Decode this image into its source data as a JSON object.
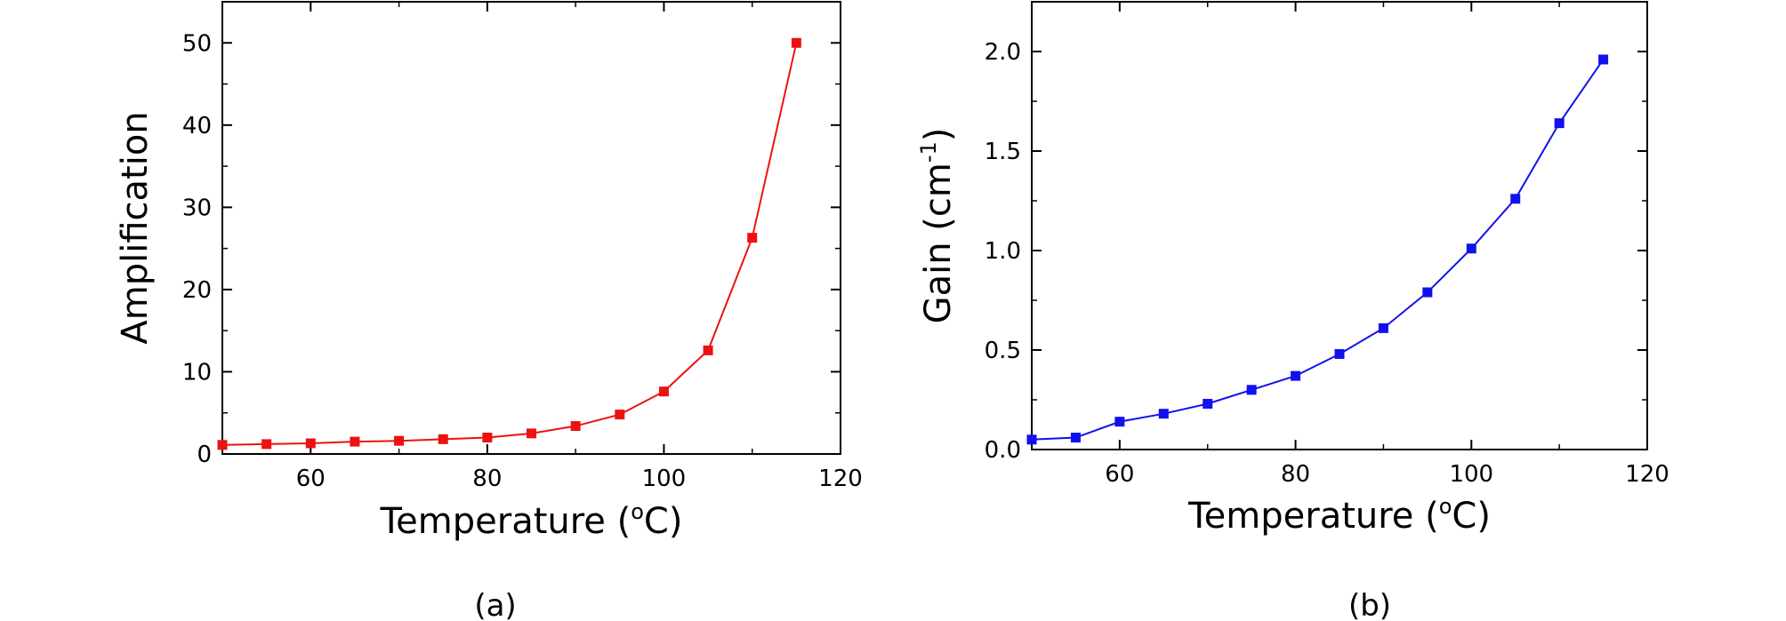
{
  "chart_data": [
    {
      "type": "line",
      "panel_label": "(a)",
      "xlabel": {
        "main": "Temperature (",
        "sup": "o",
        "tail": "C)"
      },
      "ylabel": {
        "main": "Amplification",
        "sup": "",
        "tail": ""
      },
      "xlim": [
        50,
        120
      ],
      "ylim": [
        0,
        55
      ],
      "xticks": [
        60,
        80,
        100,
        120
      ],
      "yticks": [
        0,
        10,
        20,
        30,
        40,
        50
      ],
      "tick_labels_x": [
        "60",
        "80",
        "100",
        "120"
      ],
      "tick_labels_y": [
        "0",
        "10",
        "20",
        "30",
        "40",
        "50"
      ],
      "minor_x_step": 10,
      "minor_y_step": 5,
      "grid": false,
      "color": "#ee1111",
      "marker": "square",
      "series": [
        {
          "x": [
            50,
            55,
            60,
            65,
            70,
            75,
            80,
            85,
            90,
            95,
            100,
            105,
            110,
            115
          ],
          "values": [
            1.1,
            1.2,
            1.3,
            1.5,
            1.6,
            1.8,
            2.0,
            2.5,
            3.4,
            4.8,
            7.6,
            12.6,
            26.3,
            50.0
          ]
        }
      ]
    },
    {
      "type": "line",
      "panel_label": "(b)",
      "xlabel": {
        "main": "Temperature (",
        "sup": "o",
        "tail": "C)"
      },
      "ylabel": {
        "main": "Gain (cm",
        "sup": "-1",
        "tail": ")"
      },
      "xlim": [
        50,
        120
      ],
      "ylim": [
        0,
        2.25
      ],
      "xticks": [
        60,
        80,
        100,
        120
      ],
      "yticks": [
        0.0,
        0.5,
        1.0,
        1.5,
        2.0
      ],
      "tick_labels_x": [
        "60",
        "80",
        "100",
        "120"
      ],
      "tick_labels_y": [
        "0.0",
        "0.5",
        "1.0",
        "1.5",
        "2.0"
      ],
      "minor_x_step": 10,
      "minor_y_step": 0.25,
      "grid": false,
      "color": "#1111ee",
      "marker": "square",
      "series": [
        {
          "x": [
            50,
            55,
            60,
            65,
            70,
            75,
            80,
            85,
            90,
            95,
            100,
            105,
            110,
            115
          ],
          "values": [
            0.05,
            0.06,
            0.14,
            0.18,
            0.23,
            0.3,
            0.37,
            0.48,
            0.61,
            0.79,
            1.01,
            1.26,
            1.64,
            1.96
          ]
        }
      ]
    }
  ]
}
